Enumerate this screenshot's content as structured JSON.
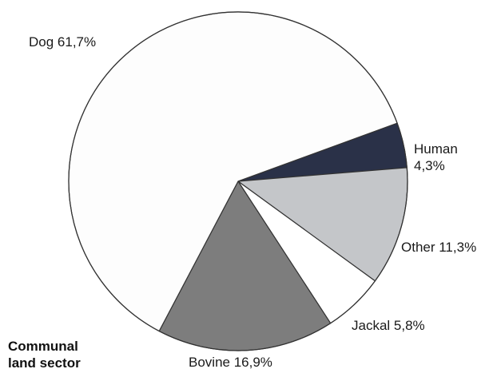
{
  "chart_data": {
    "type": "pie",
    "title": "Communal land sector",
    "title_lines": [
      "Communal",
      "land sector"
    ],
    "slices": [
      {
        "label": "Human",
        "value": 4.3,
        "label_lines": [
          "Human",
          "4,3%"
        ],
        "color": "#2a3148"
      },
      {
        "label": "Other",
        "value": 11.3,
        "label_lines": [
          "Other 11,3%"
        ],
        "color": "#c4c6c9"
      },
      {
        "label": "Jackal",
        "value": 5.8,
        "label_lines": [
          "Jackal 5,8%"
        ],
        "color": "#ffffff"
      },
      {
        "label": "Bovine",
        "value": 16.9,
        "label_lines": [
          "Bovine 16,9%"
        ],
        "color": "#7d7d7d"
      },
      {
        "label": "Dog",
        "value": 61.7,
        "label_lines": [
          "Dog 61,7%"
        ],
        "color": "#fdfdfd"
      }
    ],
    "stroke_color": "#333333"
  }
}
